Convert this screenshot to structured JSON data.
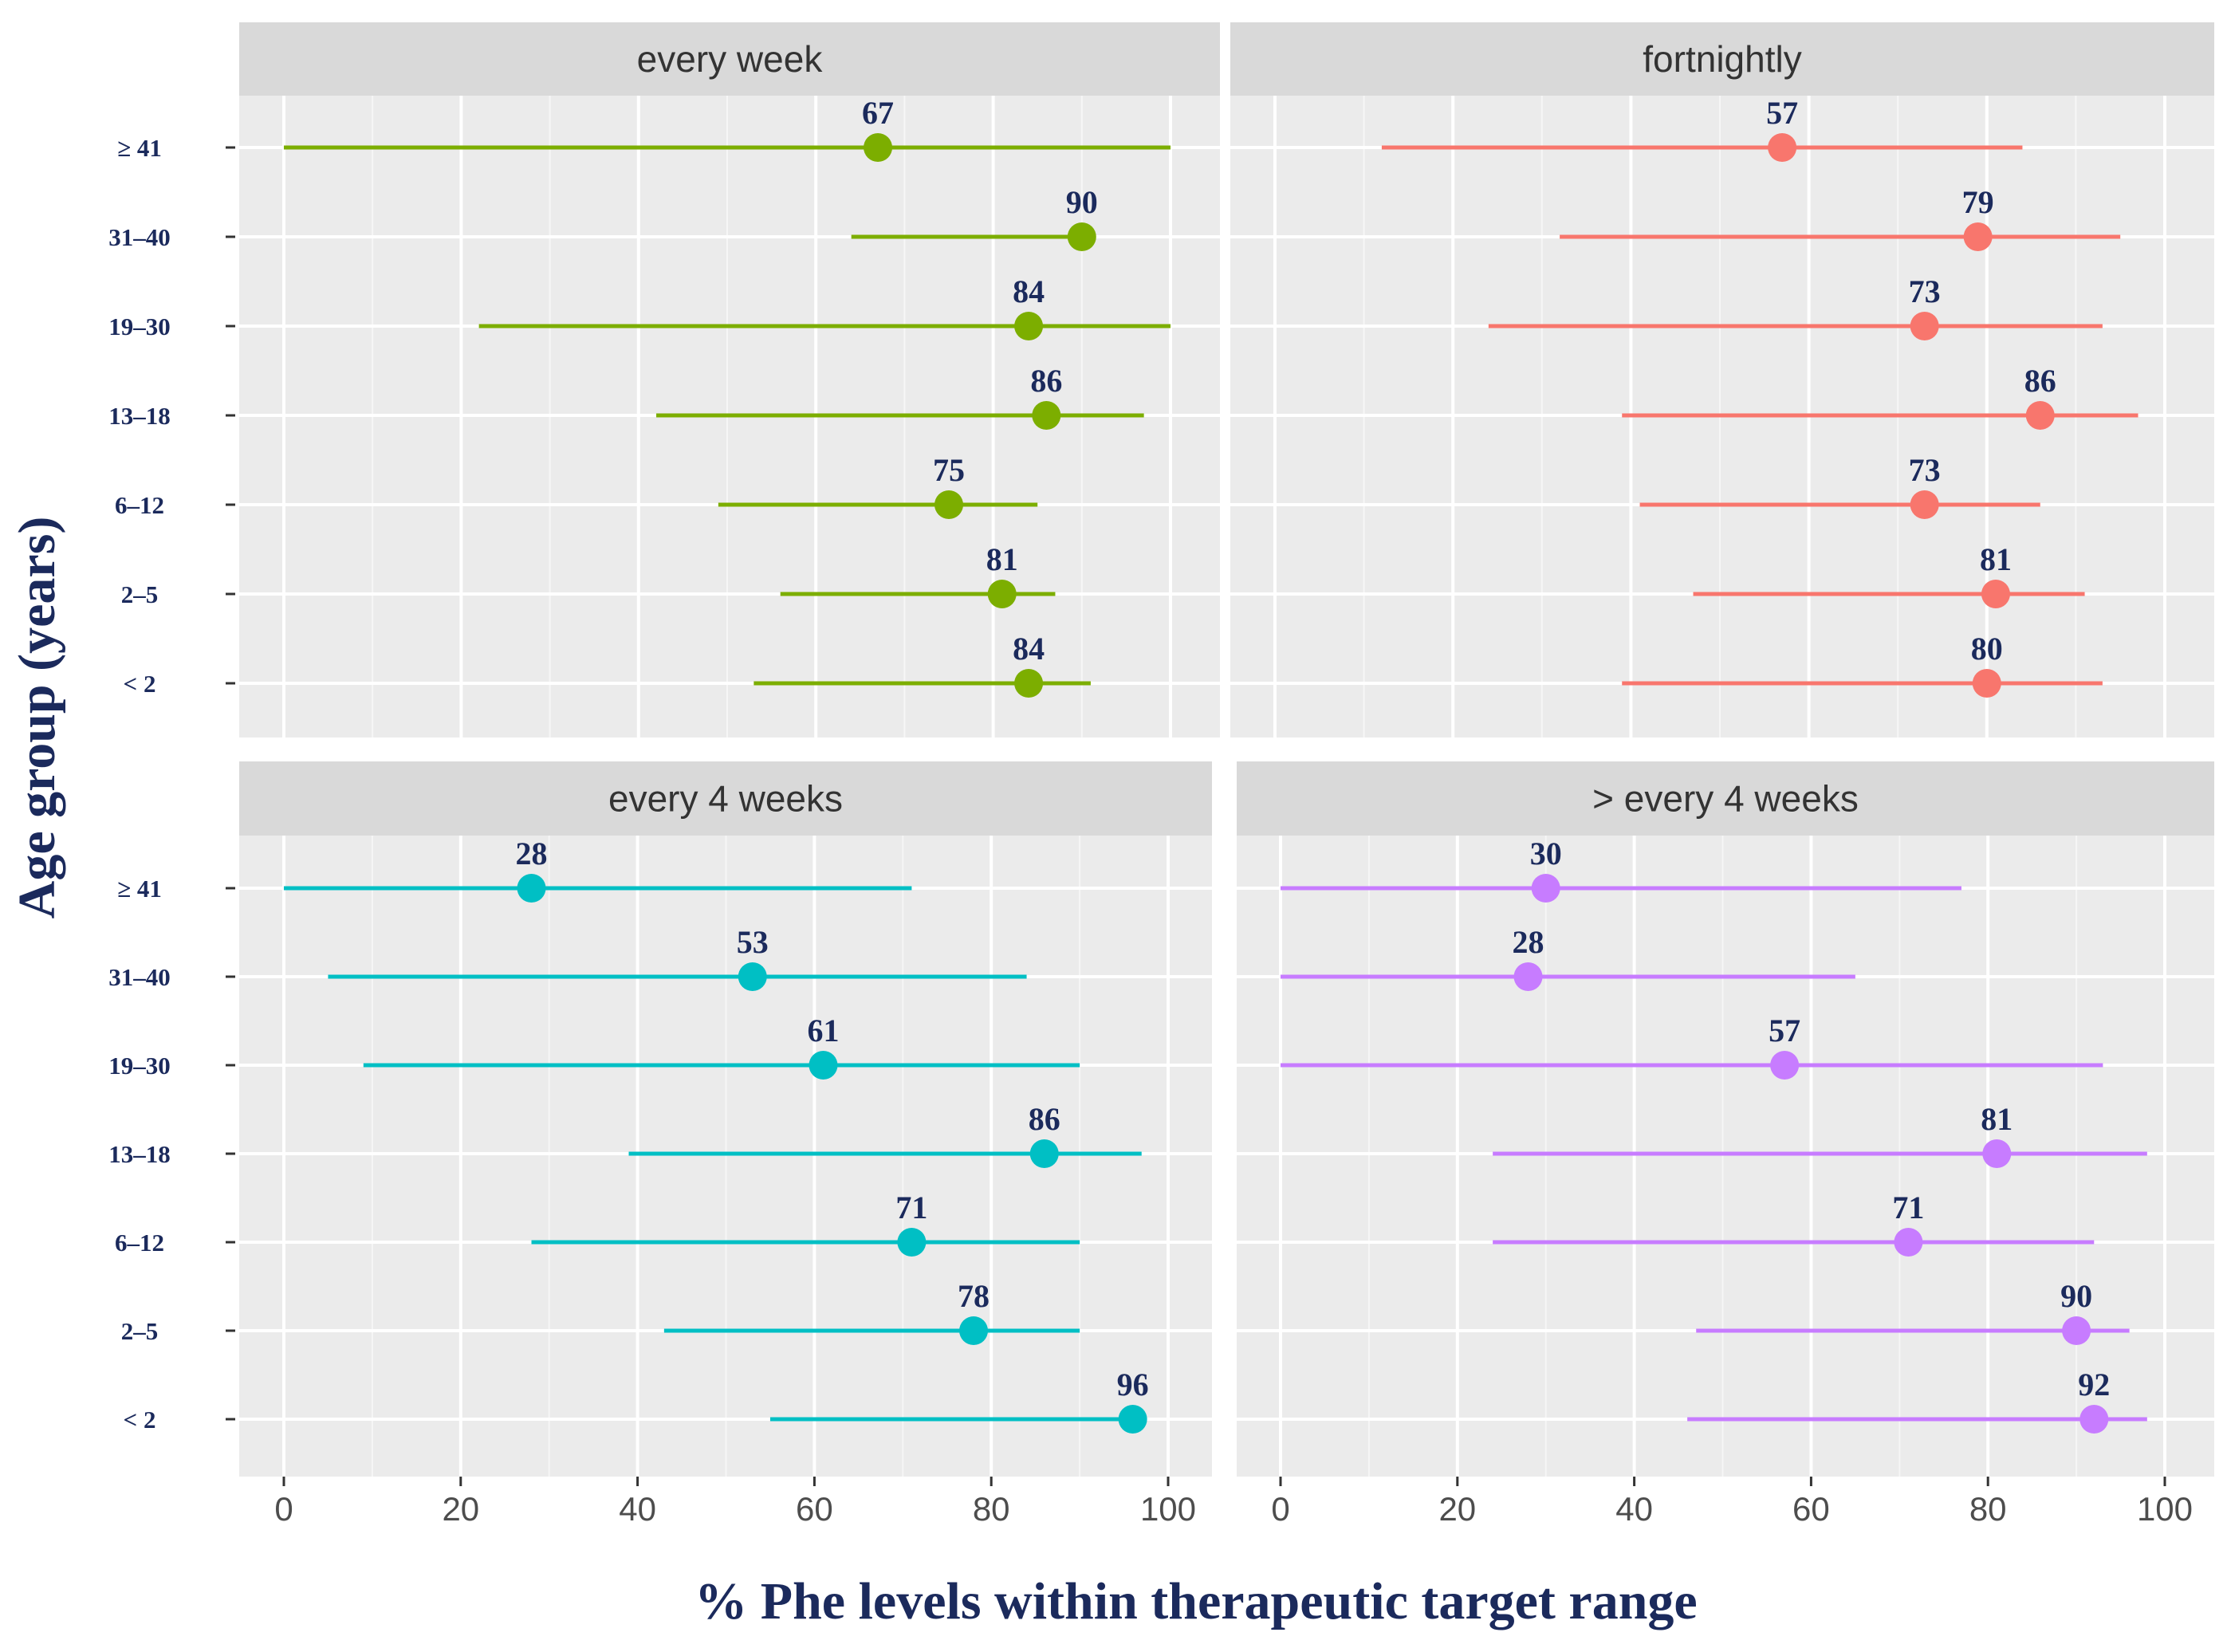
{
  "colors": {
    "text_navy": "#1b2a5c",
    "panel_bg": "#ebebeb",
    "strip_bg": "#d9d9d9",
    "grid": "#ffffff",
    "every_week": "#7cae00",
    "fortnightly": "#f8766d",
    "every_4_weeks": "#00bfc4",
    "more_than_4_weeks": "#c77cff"
  },
  "chart_data": {
    "type": "dot-range",
    "xlabel": "% Phe levels within therapeutic target range",
    "ylabel": "Age group (years)",
    "xlim": [
      0,
      100
    ],
    "x_ticks": [
      "0",
      "20",
      "40",
      "60",
      "80",
      "100"
    ],
    "categories": [
      "≥ 41",
      "31–40",
      "19–30",
      "13–18",
      "6–12",
      "2–5",
      "< 2"
    ],
    "panels": [
      {
        "title": "every week",
        "color_key": "every_week",
        "values": [
          67,
          90,
          84,
          86,
          75,
          81,
          84
        ],
        "ranges": [
          [
            0,
            100
          ],
          [
            64,
            90
          ],
          [
            22,
            100
          ],
          [
            42,
            97
          ],
          [
            49,
            85
          ],
          [
            56,
            87
          ],
          [
            53,
            91
          ]
        ]
      },
      {
        "title": "fortnightly",
        "color_key": "fortnightly",
        "values": [
          57,
          79,
          73,
          86,
          73,
          81,
          80
        ],
        "ranges": [
          [
            12,
            84
          ],
          [
            32,
            95
          ],
          [
            24,
            93
          ],
          [
            39,
            97
          ],
          [
            41,
            86
          ],
          [
            47,
            91
          ],
          [
            39,
            93
          ]
        ]
      },
      {
        "title": "every 4 weeks",
        "color_key": "every_4_weeks",
        "values": [
          28,
          53,
          61,
          86,
          71,
          78,
          96
        ],
        "ranges": [
          [
            0,
            71
          ],
          [
            5,
            84
          ],
          [
            9,
            90
          ],
          [
            39,
            97
          ],
          [
            28,
            90
          ],
          [
            43,
            90
          ],
          [
            55,
            96
          ]
        ]
      },
      {
        "title": "> every 4 weeks",
        "color_key": "more_than_4_weeks",
        "values": [
          30,
          28,
          57,
          81,
          71,
          90,
          92
        ],
        "ranges": [
          [
            0,
            77
          ],
          [
            0,
            65
          ],
          [
            0,
            93
          ],
          [
            24,
            98
          ],
          [
            24,
            92
          ],
          [
            47,
            96
          ],
          [
            46,
            98
          ]
        ]
      }
    ]
  }
}
